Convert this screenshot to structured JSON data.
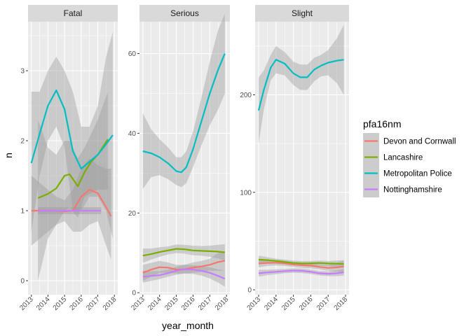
{
  "chart_data": {
    "type": "line",
    "subtype": "faceted smoothed trend lines with confidence ribbons",
    "xlabel": "year_month",
    "ylabel": "n",
    "x_tick_labels": [
      "2013",
      "2014",
      "2015",
      "2016",
      "2017",
      "2018"
    ],
    "legend": {
      "title": "pfa16nm",
      "placement": "right",
      "entries": [
        "Devon and Cornwall",
        "Lancashire",
        "Metropolitan Police",
        "Nottinghamshire"
      ]
    },
    "series_colors": {
      "Devon and Cornwall": "#F8766D",
      "Lancashire": "#7CAE00",
      "Metropolitan Police": "#00BFC4",
      "Nottinghamshire": "#C77CFF"
    },
    "ribbon_color": "#999999",
    "panel_background": "#EBEBEB",
    "strip_background": "#D9D9D9",
    "grid": true,
    "facets": [
      {
        "name": "Fatal",
        "ylim": [
          -0.2,
          3.7
        ],
        "y_ticks": [
          0,
          1,
          2,
          3
        ],
        "series": [
          {
            "name": "Devon and Cornwall",
            "x": [
              2013.0,
              2013.5,
              2014.0,
              2014.5,
              2015.0,
              2015.5,
              2016.0,
              2016.5,
              2017.0,
              2017.5,
              2017.8
            ],
            "y": [
              1.0,
              1.0,
              1.0,
              1.0,
              0.99,
              1.0,
              1.2,
              1.3,
              1.25,
              1.05,
              0.92
            ],
            "lower": [
              0.5,
              0.6,
              0.7,
              0.8,
              0.85,
              0.7,
              0.7,
              0.8,
              0.85,
              0.5,
              0.3
            ],
            "upper": [
              1.5,
              1.4,
              1.3,
              1.2,
              1.15,
              1.3,
              1.6,
              1.75,
              1.65,
              1.6,
              1.6
            ]
          },
          {
            "name": "Lancashire",
            "x": [
              2013.4,
              2014.0,
              2014.5,
              2015.0,
              2015.3,
              2015.8,
              2016.2,
              2016.6,
              2017.0,
              2017.6
            ],
            "y": [
              1.18,
              1.24,
              1.32,
              1.5,
              1.52,
              1.35,
              1.55,
              1.7,
              1.8,
              2.02
            ],
            "lower": [
              0.0,
              0.6,
              0.8,
              1.0,
              1.05,
              0.9,
              1.2,
              1.25,
              1.3,
              1.3
            ],
            "upper": [
              2.3,
              1.9,
              1.8,
              2.0,
              2.0,
              1.75,
              1.9,
              2.1,
              2.3,
              2.7
            ]
          },
          {
            "name": "Metropolitan Police",
            "x": [
              2013.0,
              2013.5,
              2014.0,
              2014.5,
              2015.0,
              2015.5,
              2016.0,
              2016.5,
              2017.0,
              2017.5,
              2017.9
            ],
            "y": [
              1.68,
              2.1,
              2.5,
              2.72,
              2.45,
              1.85,
              1.6,
              1.7,
              1.8,
              1.95,
              2.08
            ],
            "lower": [
              0.7,
              1.5,
              2.0,
              2.2,
              1.9,
              1.0,
              1.0,
              1.2,
              1.2,
              1.0,
              0.6
            ],
            "upper": [
              2.7,
              2.7,
              3.0,
              3.2,
              3.0,
              2.7,
              2.2,
              2.2,
              2.5,
              3.2,
              3.55
            ]
          },
          {
            "name": "Nottinghamshire",
            "x": [
              2013.4,
              2014.0,
              2014.5,
              2015.0,
              2015.5,
              2016.0,
              2016.5,
              2017.0,
              2017.2
            ],
            "y": [
              1.0,
              1.0,
              1.0,
              1.0,
              1.0,
              1.0,
              1.0,
              1.0,
              1.0
            ],
            "lower": [
              0.95,
              0.95,
              0.95,
              0.95,
              0.95,
              0.95,
              0.95,
              0.95,
              0.95
            ],
            "upper": [
              1.05,
              1.05,
              1.05,
              1.05,
              1.05,
              1.05,
              1.05,
              1.05,
              1.05
            ]
          }
        ]
      },
      {
        "name": "Serious",
        "ylim": [
          -0.5,
          68
        ],
        "y_ticks": [
          0,
          20,
          40,
          60
        ],
        "series": [
          {
            "name": "Devon and Cornwall",
            "x": [
              2013.0,
              2013.5,
              2014.0,
              2014.5,
              2015.0,
              2015.5,
              2016.0,
              2016.5,
              2017.0,
              2017.5,
              2017.9
            ],
            "y": [
              5.0,
              5.8,
              6.4,
              6.3,
              5.8,
              5.9,
              6.3,
              6.6,
              7.0,
              7.7,
              8.0
            ],
            "lower": [
              3.0,
              4.0,
              5.0,
              5.0,
              4.8,
              4.8,
              5.0,
              5.2,
              5.5,
              5.5,
              5.5
            ],
            "upper": [
              7.0,
              7.5,
              8.0,
              7.6,
              7.0,
              7.0,
              7.6,
              8.0,
              8.5,
              10.0,
              10.5
            ]
          },
          {
            "name": "Lancashire",
            "x": [
              2013.0,
              2013.5,
              2014.0,
              2014.5,
              2015.0,
              2015.5,
              2016.0,
              2016.5,
              2017.0,
              2017.5,
              2017.9
            ],
            "y": [
              9.3,
              9.7,
              10.2,
              10.6,
              11.0,
              10.9,
              10.6,
              10.5,
              10.4,
              10.3,
              10.1
            ],
            "lower": [
              7.5,
              8.3,
              9.0,
              9.6,
              9.9,
              9.8,
              9.4,
              9.3,
              9.0,
              8.6,
              8.0
            ],
            "upper": [
              11.1,
              11.1,
              11.4,
              11.6,
              12.1,
              12.0,
              11.8,
              11.7,
              11.8,
              12.0,
              12.2
            ]
          },
          {
            "name": "Metropolitan Police",
            "x": [
              2013.0,
              2013.5,
              2014.0,
              2014.5,
              2015.0,
              2015.3,
              2015.6,
              2016.0,
              2016.5,
              2017.0,
              2017.5,
              2017.9
            ],
            "y": [
              35.5,
              35.0,
              34.0,
              32.5,
              30.5,
              30.2,
              31.5,
              36.0,
              43.0,
              50.0,
              56.0,
              60.0
            ],
            "lower": [
              26.0,
              29.0,
              29.5,
              28.5,
              27.0,
              26.5,
              27.5,
              31.5,
              37.0,
              42.0,
              46.0,
              50.0
            ],
            "upper": [
              45.0,
              41.0,
              38.5,
              36.5,
              34.0,
              34.0,
              35.5,
              40.5,
              49.0,
              58.0,
              66.0,
              70.0
            ]
          },
          {
            "name": "Nottinghamshire",
            "x": [
              2013.0,
              2013.5,
              2014.0,
              2014.5,
              2015.0,
              2015.5,
              2016.0,
              2016.5,
              2017.0,
              2017.5,
              2017.9
            ],
            "y": [
              4.0,
              4.2,
              4.4,
              4.9,
              5.5,
              5.9,
              5.8,
              5.5,
              5.0,
              4.2,
              3.5
            ],
            "lower": [
              2.5,
              3.0,
              3.4,
              4.0,
              4.5,
              4.8,
              4.7,
              4.3,
              3.6,
              2.5,
              1.5
            ],
            "upper": [
              5.5,
              5.4,
              5.4,
              5.8,
              6.5,
              7.0,
              6.9,
              6.7,
              6.4,
              5.9,
              5.5
            ]
          }
        ]
      },
      {
        "name": "Slight",
        "ylim": [
          -5,
          275
        ],
        "y_ticks": [
          0,
          100,
          200
        ],
        "series": [
          {
            "name": "Devon and Cornwall",
            "x": [
              2013.0,
              2013.5,
              2014.0,
              2014.5,
              2015.0,
              2015.5,
              2016.0,
              2016.5,
              2017.0,
              2017.5,
              2017.9
            ],
            "y": [
              27.0,
              27.5,
              27.8,
              27.2,
              26.0,
              25.2,
              24.8,
              23.5,
              22.5,
              23.0,
              24.0
            ],
            "lower": [
              23.0,
              24.5,
              25.0,
              24.5,
              23.5,
              22.5,
              22.0,
              21.0,
              19.5,
              18.5,
              18.0
            ],
            "upper": [
              31.0,
              30.5,
              30.6,
              30.0,
              28.5,
              28.0,
              27.6,
              26.0,
              25.5,
              27.5,
              30.0
            ]
          },
          {
            "name": "Lancashire",
            "x": [
              2013.0,
              2013.5,
              2014.0,
              2014.5,
              2015.0,
              2015.5,
              2016.0,
              2016.5,
              2017.0,
              2017.5,
              2017.9
            ],
            "y": [
              31.0,
              30.5,
              29.5,
              28.5,
              27.5,
              27.0,
              27.2,
              27.5,
              27.0,
              26.8,
              26.5
            ],
            "lower": [
              27.0,
              27.5,
              27.0,
              26.0,
              25.0,
              24.5,
              24.8,
              25.0,
              24.5,
              23.5,
              22.5
            ],
            "upper": [
              35.0,
              33.5,
              32.0,
              31.0,
              30.0,
              29.5,
              29.6,
              30.0,
              29.5,
              30.1,
              30.5
            ]
          },
          {
            "name": "Metropolitan Police",
            "x": [
              2013.0,
              2013.3,
              2013.7,
              2014.0,
              2014.5,
              2015.0,
              2015.4,
              2015.8,
              2016.2,
              2016.6,
              2017.0,
              2017.5,
              2017.9
            ],
            "y": [
              184.0,
              205.0,
              228.0,
              236.0,
              232.0,
              222.0,
              218.0,
              218.0,
              226.0,
              230.0,
              233.0,
              235.0,
              236.0
            ],
            "lower": [
              150.0,
              185.0,
              215.0,
              222.0,
              220.0,
              210.0,
              205.0,
              205.0,
              214.0,
              219.0,
              220.0,
              212.0,
              200.0
            ],
            "upper": [
              218.0,
              225.0,
              241.0,
              250.0,
              244.0,
              234.0,
              231.0,
              231.0,
              238.0,
              241.0,
              246.0,
              258.0,
              272.0
            ]
          },
          {
            "name": "Nottinghamshire",
            "x": [
              2013.0,
              2013.5,
              2014.0,
              2014.5,
              2015.0,
              2015.5,
              2016.0,
              2016.5,
              2017.0,
              2017.5,
              2017.9
            ],
            "y": [
              17.0,
              17.8,
              18.5,
              19.2,
              19.8,
              19.5,
              18.5,
              17.0,
              16.5,
              17.0,
              18.0
            ],
            "lower": [
              13.5,
              15.0,
              16.0,
              17.0,
              17.5,
              17.2,
              16.2,
              14.8,
              14.0,
              14.0,
              14.5
            ],
            "upper": [
              20.5,
              20.6,
              21.0,
              21.4,
              22.1,
              21.8,
              20.8,
              19.2,
              19.0,
              20.0,
              21.5
            ]
          }
        ]
      }
    ]
  }
}
